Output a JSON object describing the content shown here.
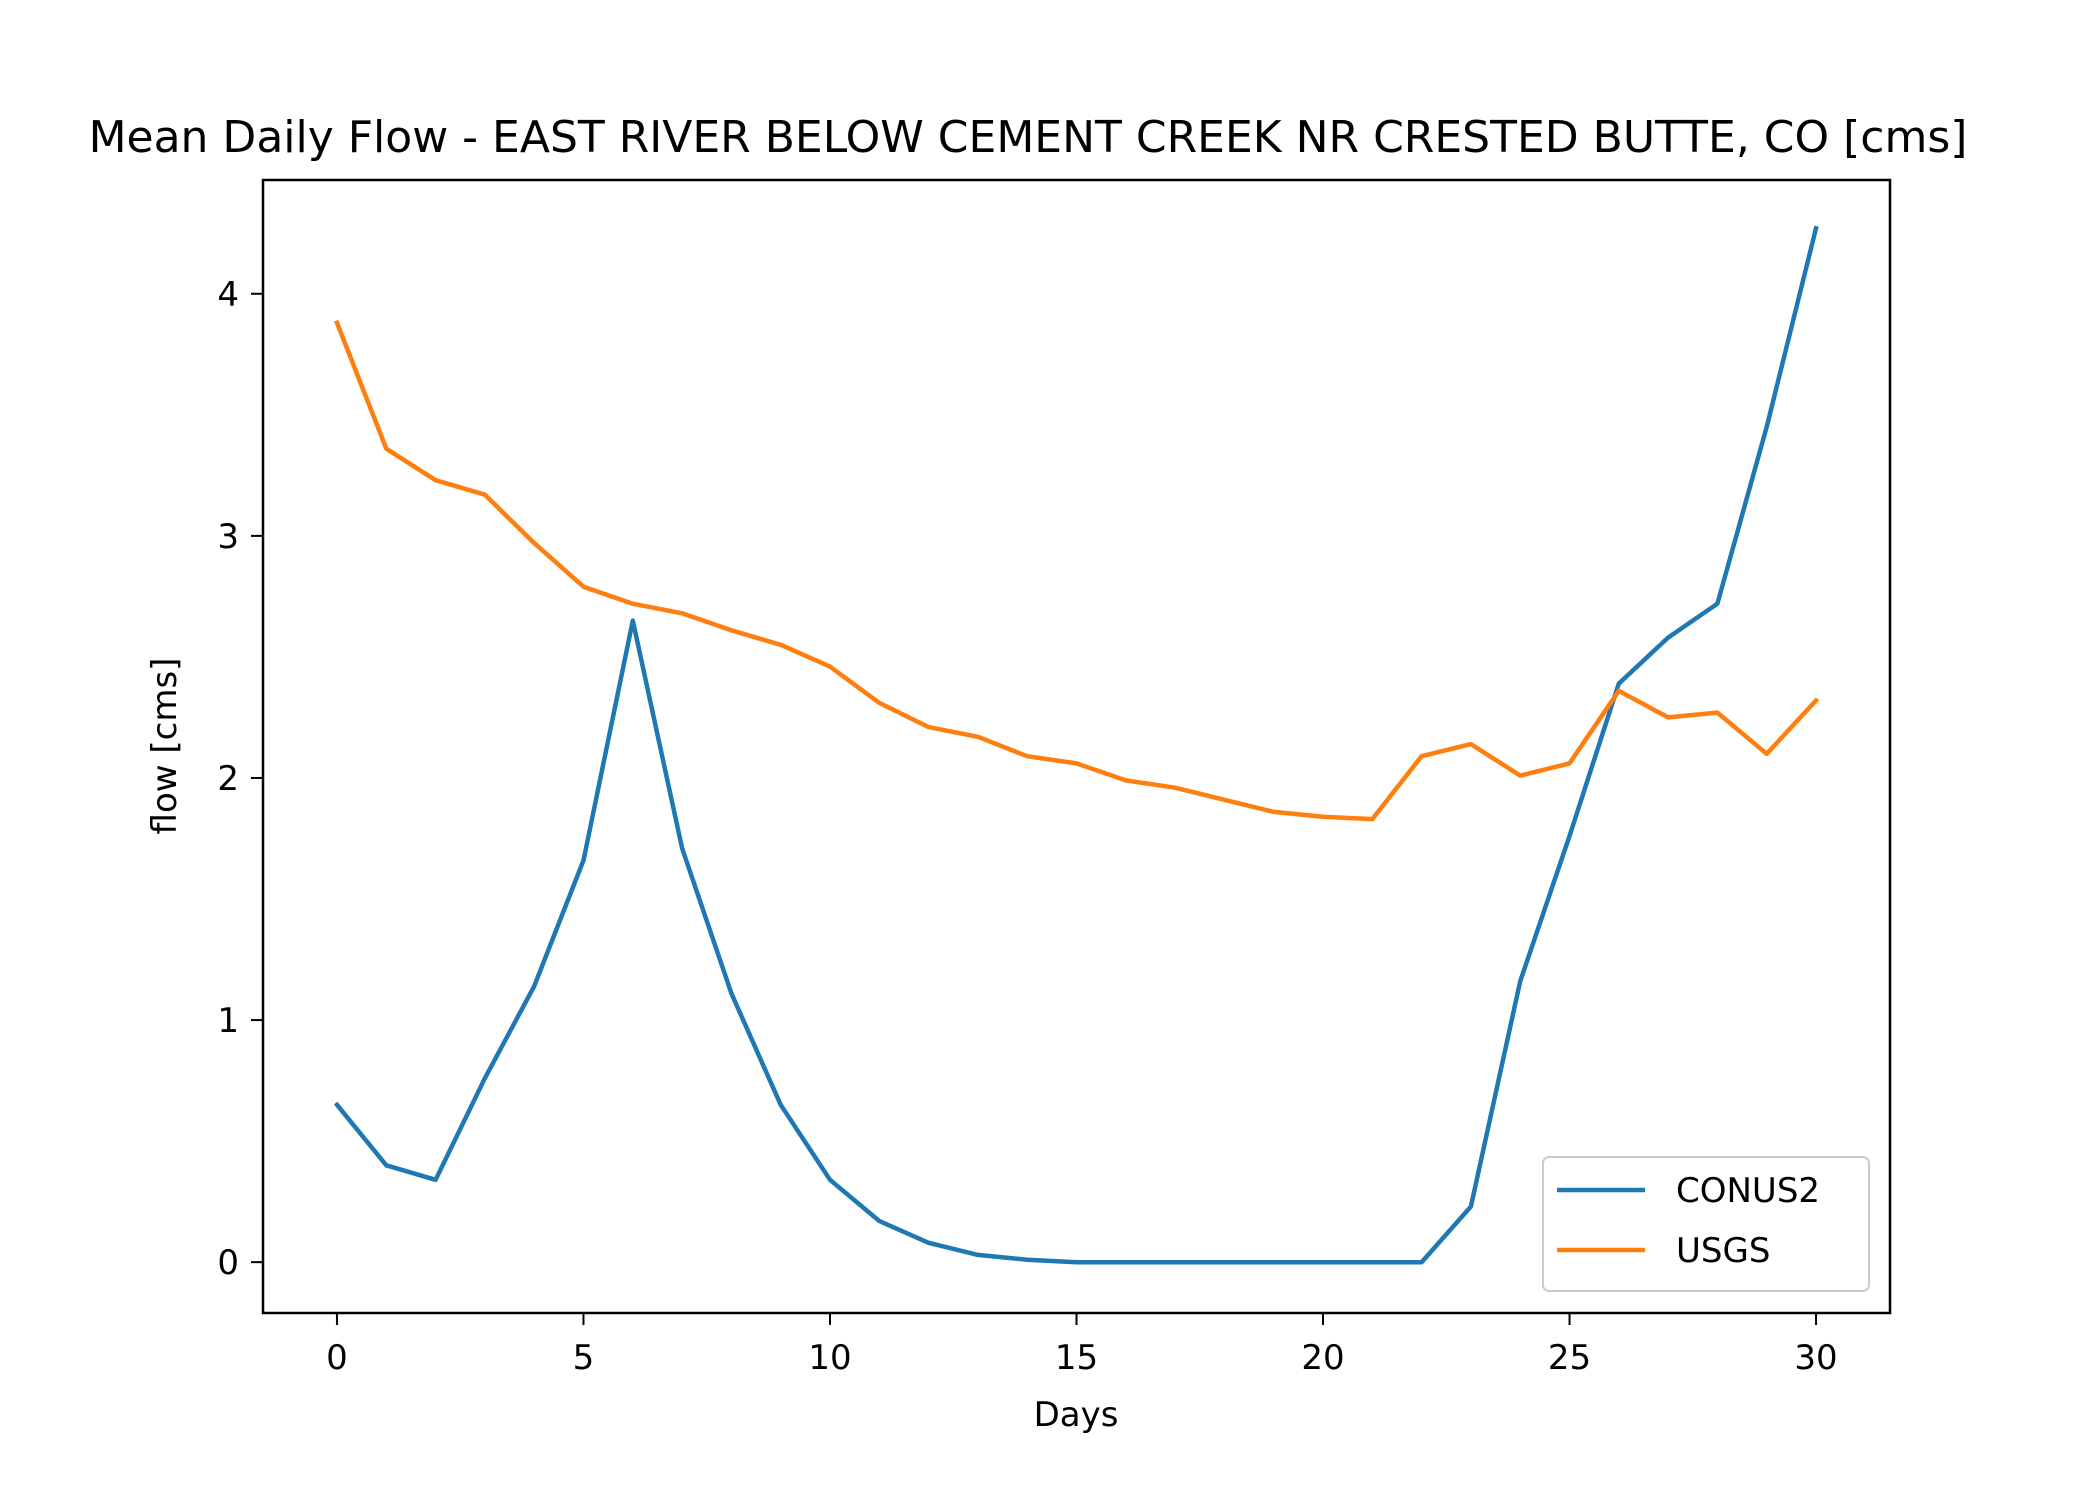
{
  "chart_data": {
    "type": "line",
    "title": "Mean Daily Flow - EAST RIVER BELOW CEMENT CREEK NR CRESTED BUTTE, CO [cms]",
    "xlabel": "Days",
    "ylabel": "flow [cms]",
    "xlim": [
      -1.5,
      31.5
    ],
    "ylim": [
      -0.21,
      4.47
    ],
    "xticks": [
      0,
      5,
      10,
      15,
      20,
      25,
      30
    ],
    "yticks": [
      0,
      1,
      2,
      3,
      4
    ],
    "grid": false,
    "legend_position": "lower-right",
    "x": [
      0,
      1,
      2,
      3,
      4,
      5,
      6,
      7,
      8,
      9,
      10,
      11,
      12,
      13,
      14,
      15,
      16,
      17,
      18,
      19,
      20,
      21,
      22,
      23,
      24,
      25,
      26,
      27,
      28,
      29,
      30
    ],
    "series": [
      {
        "name": "CONUS2",
        "color": "#1f77b4",
        "values": [
          0.65,
          0.4,
          0.34,
          0.76,
          1.14,
          1.66,
          2.65,
          1.71,
          1.11,
          0.65,
          0.34,
          0.17,
          0.08,
          0.03,
          0.01,
          0.0,
          0.0,
          0.0,
          0.0,
          0.0,
          0.0,
          0.0,
          0.0,
          0.23,
          1.16,
          1.76,
          2.39,
          2.58,
          2.72,
          3.45,
          4.27
        ]
      },
      {
        "name": "USGS",
        "color": "#ff7f0e",
        "values": [
          3.88,
          3.36,
          3.23,
          3.17,
          2.97,
          2.79,
          2.72,
          2.68,
          2.61,
          2.55,
          2.46,
          2.31,
          2.21,
          2.17,
          2.09,
          2.06,
          1.99,
          1.96,
          1.91,
          1.86,
          1.84,
          1.83,
          2.09,
          2.14,
          2.01,
          2.06,
          2.36,
          2.25,
          2.27,
          2.1,
          2.32
        ]
      }
    ]
  }
}
